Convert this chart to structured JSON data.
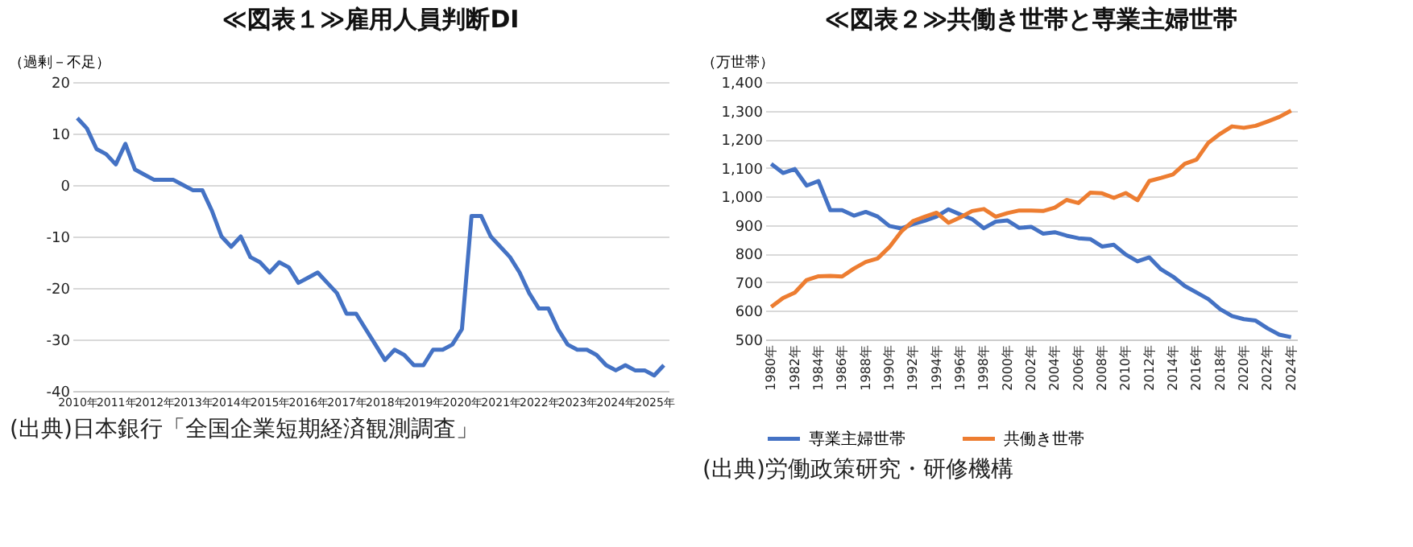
{
  "chart_data": [
    {
      "type": "line",
      "title": "≪図表１≫雇用人員判断DI",
      "ylabel": "（過剰－不足）",
      "categories": [
        "2010年",
        null,
        null,
        null,
        "2011年",
        null,
        null,
        null,
        "2012年",
        null,
        null,
        null,
        "2013年",
        null,
        null,
        null,
        "2014年",
        null,
        null,
        null,
        "2015年",
        null,
        null,
        null,
        "2016年",
        null,
        null,
        null,
        "2017年",
        null,
        null,
        null,
        "2018年",
        null,
        null,
        null,
        "2019年",
        null,
        null,
        null,
        "2020年",
        null,
        null,
        null,
        "2021年",
        null,
        null,
        null,
        "2022年",
        null,
        null,
        null,
        "2023年",
        null,
        null,
        null,
        "2024年",
        null,
        null,
        null,
        "2025年",
        null
      ],
      "series": [
        {
          "color": "#4472c4",
          "values": [
            13,
            11,
            7,
            6,
            4,
            8,
            3,
            2,
            1,
            1,
            1,
            0,
            -1,
            -1,
            -5,
            -10,
            -12,
            -10,
            -14,
            -15,
            -17,
            -15,
            -16,
            -19,
            -18,
            -17,
            -19,
            -21,
            -25,
            -25,
            -28,
            -31,
            -34,
            -32,
            -33,
            -35,
            -35,
            -32,
            -32,
            -31,
            -28,
            -6,
            -6,
            -10,
            -12,
            -14,
            -17,
            -21,
            -24,
            -24,
            -28,
            -31,
            -32,
            -32,
            -33,
            -35,
            -36,
            -35,
            -36,
            -36,
            -37,
            -35
          ]
        }
      ],
      "ylim": [
        -40,
        20
      ],
      "yticks": [
        -40,
        -30,
        -20,
        -10,
        0,
        10,
        20
      ],
      "grid": "y",
      "legend": false,
      "line_style": "solid",
      "marker": "none",
      "annotations": [
        "(出典)日本銀行「全国企業短期経済観測調査」"
      ]
    },
    {
      "type": "line",
      "title": "≪図表２≫共働き世帯と専業主婦世帯",
      "ylabel": "（万世帯）",
      "categories": [
        "1980年",
        null,
        "1982年",
        null,
        "1984年",
        null,
        "1986年",
        null,
        "1988年",
        null,
        "1990年",
        null,
        "1992年",
        null,
        "1994年",
        null,
        "1996年",
        null,
        "1998年",
        null,
        "2000年",
        null,
        "2002年",
        null,
        "2004年",
        null,
        "2006年",
        null,
        "2008年",
        null,
        "2010年",
        null,
        "2012年",
        null,
        "2014年",
        null,
        "2016年",
        null,
        "2018年",
        null,
        "2020年",
        null,
        "2022年",
        null,
        "2024年"
      ],
      "series": [
        {
          "name": "専業主婦世帯",
          "color": "#4472c4",
          "values": [
            1114,
            1082,
            1096,
            1038,
            1054,
            952,
            952,
            933,
            946,
            930,
            897,
            888,
            903,
            915,
            930,
            955,
            937,
            921,
            889,
            912,
            916,
            890,
            894,
            870,
            875,
            863,
            854,
            851,
            825,
            831,
            797,
            773,
            787,
            745,
            720,
            687,
            664,
            641,
            606,
            582,
            571,
            566,
            539,
            517,
            508
          ]
        },
        {
          "name": "共働き世帯",
          "color": "#ed7d31",
          "values": [
            614,
            645,
            664,
            708,
            721,
            722,
            720,
            748,
            771,
            783,
            823,
            877,
            914,
            929,
            943,
            908,
            927,
            949,
            956,
            929,
            942,
            951,
            951,
            949,
            961,
            988,
            977,
            1013,
            1011,
            995,
            1012,
            987,
            1054,
            1065,
            1077,
            1114,
            1129,
            1188,
            1219,
            1245,
            1240,
            1247,
            1262,
            1278,
            1300
          ]
        }
      ],
      "ylim": [
        500,
        1400
      ],
      "yticks": [
        {
          "value": 500,
          "label": "500"
        },
        {
          "value": 600,
          "label": "600"
        },
        {
          "value": 700,
          "label": "700"
        },
        {
          "value": 800,
          "label": "800"
        },
        {
          "value": 900,
          "label": "900"
        },
        {
          "value": 1000,
          "label": "1,000"
        },
        {
          "value": 1100,
          "label": "1,100"
        },
        {
          "value": 1200,
          "label": "1,200"
        },
        {
          "value": 1300,
          "label": "1,300"
        },
        {
          "value": 1400,
          "label": "1,400"
        }
      ],
      "grid": "y",
      "legend": "bottom",
      "line_style": "solid",
      "marker": "none",
      "annotations": [
        "(出典)労働政策研究・研修機構"
      ]
    }
  ]
}
